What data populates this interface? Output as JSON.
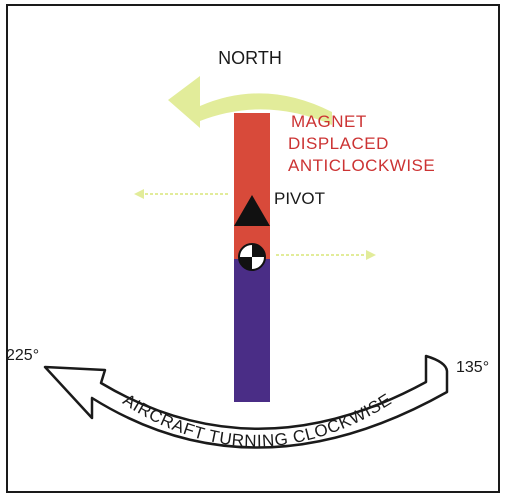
{
  "labels": {
    "north": "NORTH",
    "pivot": "PIVOT",
    "magnet_line1": "MAGNET",
    "magnet_line2": "DISPLACED",
    "magnet_line3": "ANTICLOCKWISE",
    "deg_left": "225°",
    "deg_right": "135°",
    "aircraft": "AIRCRAFT TURNING CLOCKWISE"
  },
  "colors": {
    "magnet_north": "#d84a3a",
    "magnet_south": "#4a2d86",
    "magnet_text": "#cc3333",
    "yellow_arrow": "#e2ec9a",
    "outline": "#1a1a1a"
  }
}
